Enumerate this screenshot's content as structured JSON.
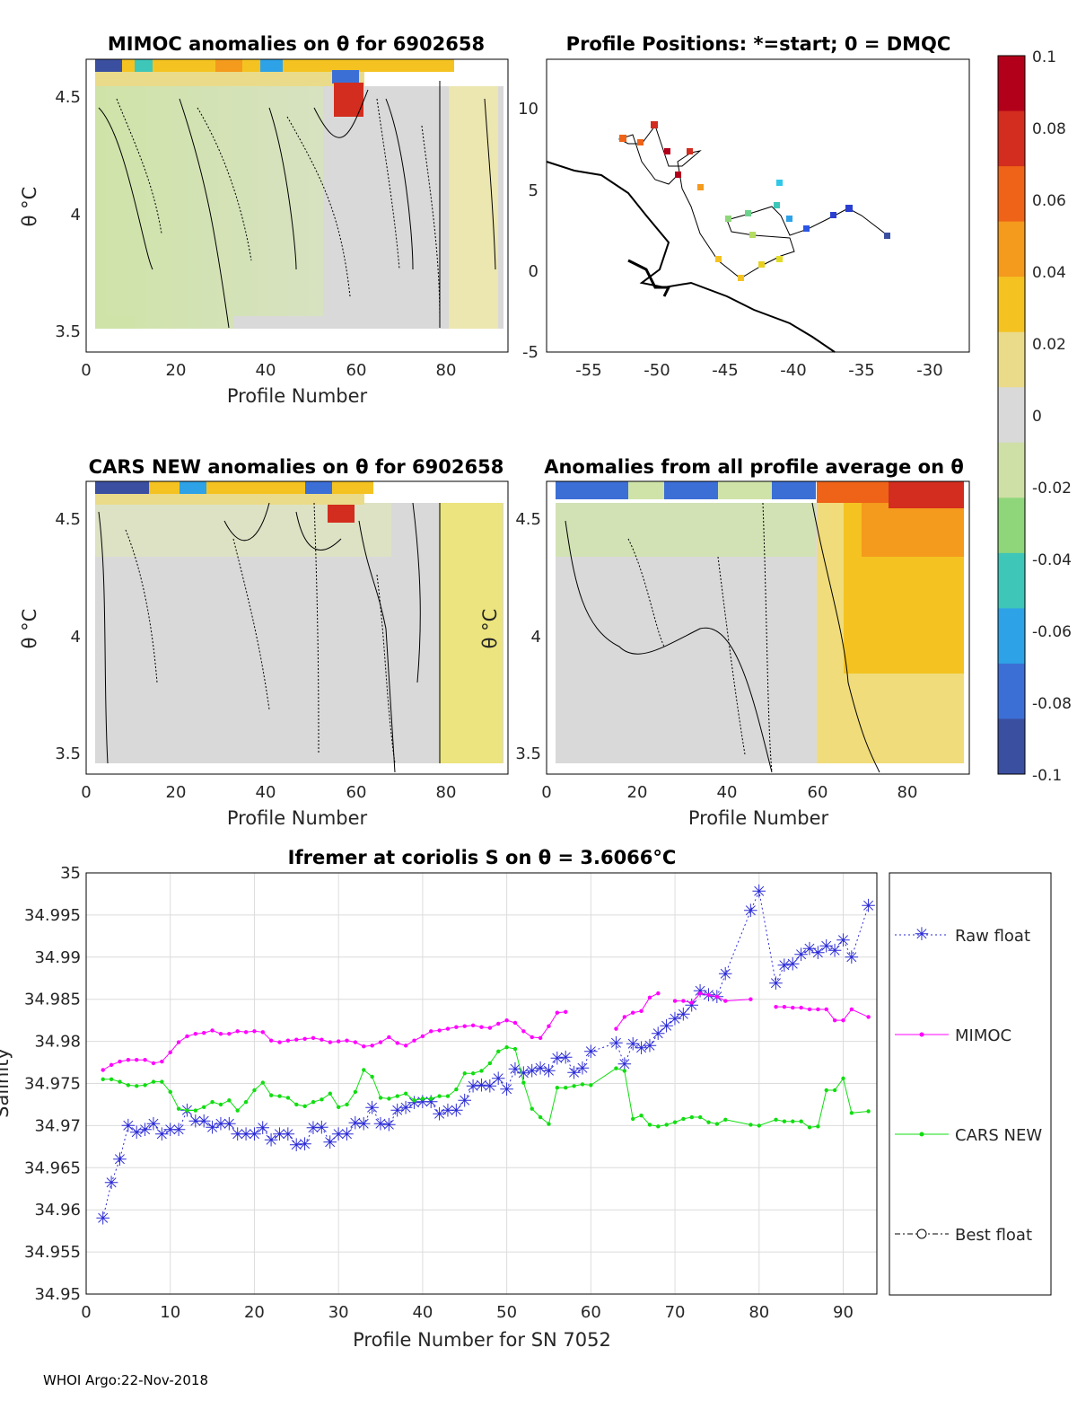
{
  "footer": "WHOI Argo:22-Nov-2018",
  "colorbar": {
    "ticks": [
      "0.1",
      "0.08",
      "0.06",
      "0.04",
      "0.02",
      "0",
      "-0.02",
      "-0.04",
      "-0.06",
      "-0.08",
      "-0.1"
    ],
    "colors": [
      "#3b4fa0",
      "#3c6fd6",
      "#2ea2e6",
      "#3ec7b9",
      "#8fd67a",
      "#cfe0a6",
      "#d9d9d9",
      "#eadb8a",
      "#f4c321",
      "#f49a1d",
      "#ee6318",
      "#d22d1e",
      "#b3001a"
    ]
  },
  "panels": {
    "mimoc": {
      "title": "MIMOC anomalies on θ  for 6902658",
      "xlabel": "Profile Number",
      "ylabel": "θ °C",
      "xticks": [
        "0",
        "20",
        "40",
        "60",
        "80"
      ],
      "yticks": [
        "4.5",
        "4",
        "3.5"
      ]
    },
    "positions": {
      "title": "Profile Positions: *=start; 0 = DMQC",
      "xticks": [
        "-55",
        "-50",
        "-45",
        "-40",
        "-35",
        "-30"
      ],
      "yticks": [
        "10",
        "5",
        "0",
        "-5"
      ]
    },
    "cars": {
      "title": "CARS NEW anomalies on θ for 6902658",
      "xlabel": "Profile Number",
      "ylabel": "θ °C",
      "xticks": [
        "0",
        "20",
        "40",
        "60",
        "80"
      ],
      "yticks": [
        "4.5",
        "4",
        "3.5"
      ]
    },
    "avg": {
      "title": "Anomalies from all profile average on θ",
      "xlabel": "Profile Number",
      "ylabel": "θ °C",
      "xticks": [
        "0",
        "20",
        "40",
        "60",
        "80"
      ],
      "yticks": [
        "4.5",
        "4",
        "3.5"
      ]
    }
  },
  "chart_data": {
    "type": "line",
    "title": "Ifremer at coriolis S on θ = 3.6066°C",
    "xlabel": "Profile Number for SN 7052",
    "ylabel": "Salinity",
    "xlim": [
      0,
      94
    ],
    "ylim": [
      34.95,
      35.0
    ],
    "xticks": [
      "0",
      "10",
      "20",
      "30",
      "40",
      "50",
      "60",
      "70",
      "80",
      "90"
    ],
    "yticks": [
      "34.95",
      "34.955",
      "34.96",
      "34.965",
      "34.97",
      "34.975",
      "34.98",
      "34.985",
      "34.99",
      "34.995",
      "35"
    ],
    "legend": [
      "Raw float",
      "MIMOC",
      "CARS NEW",
      "Best float"
    ],
    "series": [
      {
        "name": "Raw float",
        "color": "#2b2bd6",
        "marker": "star",
        "dash": "2,3",
        "x": [
          2,
          3,
          4,
          5,
          6,
          7,
          8,
          9,
          10,
          11,
          12,
          13,
          14,
          15,
          16,
          17,
          18,
          19,
          20,
          21,
          22,
          23,
          24,
          25,
          26,
          27,
          28,
          29,
          30,
          31,
          32,
          33,
          34,
          35,
          36,
          37,
          38,
          39,
          40,
          41,
          42,
          43,
          44,
          45,
          46,
          47,
          48,
          49,
          50,
          51,
          52,
          53,
          54,
          55,
          56,
          57,
          58,
          59,
          60,
          63,
          64,
          65,
          66,
          67,
          68,
          69,
          70,
          71,
          72,
          73,
          74,
          75,
          76,
          79,
          80,
          82,
          83,
          84,
          85,
          86,
          87,
          88,
          89,
          90,
          91,
          93
        ],
        "y": [
          34.959,
          34.9632,
          34.966,
          34.97,
          34.9692,
          34.9695,
          34.9702,
          34.969,
          34.9695,
          34.9695,
          34.9718,
          34.9705,
          34.9705,
          34.9698,
          34.9702,
          34.9702,
          34.969,
          34.969,
          34.969,
          34.9697,
          34.9683,
          34.969,
          34.969,
          34.9677,
          34.9678,
          34.9697,
          34.9698,
          34.968,
          34.969,
          34.969,
          34.9703,
          34.9702,
          34.9721,
          34.9702,
          34.9701,
          34.9718,
          34.9721,
          34.9727,
          34.9728,
          34.9728,
          34.9714,
          34.9718,
          34.9718,
          34.973,
          34.9747,
          34.9748,
          34.9747,
          34.9756,
          34.9743,
          34.9767,
          34.9762,
          34.9765,
          34.9768,
          34.9765,
          34.978,
          34.9781,
          34.9763,
          34.9768,
          34.9788,
          34.9798,
          34.9773,
          34.9797,
          34.9792,
          34.9795,
          34.9809,
          34.9818,
          34.9827,
          34.9832,
          34.9843,
          34.986,
          34.9855,
          34.9853,
          34.988,
          34.9955,
          34.9978,
          34.9869,
          34.989,
          34.9892,
          34.9903,
          34.991,
          34.9905,
          34.9913,
          34.9908,
          34.992,
          34.99,
          34.9961
        ]
      },
      {
        "name": "MIMOC",
        "color": "#ff00ff",
        "marker": "dot",
        "dash": "",
        "x": [
          2,
          3,
          4,
          5,
          6,
          7,
          8,
          9,
          10,
          11,
          12,
          13,
          14,
          15,
          16,
          17,
          18,
          19,
          20,
          21,
          22,
          23,
          24,
          25,
          26,
          27,
          28,
          29,
          30,
          31,
          32,
          33,
          34,
          35,
          36,
          37,
          38,
          39,
          40,
          41,
          42,
          43,
          44,
          45,
          46,
          47,
          48,
          49,
          50,
          51,
          52,
          53,
          54,
          55,
          56,
          57,
          null,
          63,
          64,
          65,
          66,
          67,
          68,
          null,
          70,
          71,
          72,
          73,
          74,
          75,
          76,
          79,
          null,
          82,
          83,
          84,
          85,
          86,
          87,
          88,
          89,
          90,
          91,
          93
        ],
        "y": [
          34.9766,
          34.9772,
          34.9776,
          34.9778,
          34.9778,
          34.9778,
          34.9774,
          34.9776,
          34.9787,
          34.9799,
          34.9806,
          34.9809,
          34.981,
          34.9813,
          34.9809,
          34.9809,
          34.9812,
          34.9811,
          34.9812,
          34.9811,
          34.9801,
          34.9799,
          34.9801,
          34.9802,
          34.9803,
          34.9804,
          34.9802,
          34.9799,
          34.98,
          34.9801,
          34.9799,
          34.9794,
          34.9795,
          34.9799,
          34.9805,
          34.9798,
          34.9795,
          34.9801,
          34.9806,
          34.9812,
          34.9813,
          34.9815,
          34.9817,
          34.9818,
          34.9819,
          34.9817,
          34.9816,
          34.9821,
          34.9825,
          34.9822,
          34.9812,
          34.9805,
          34.9804,
          34.9818,
          34.9834,
          34.9835,
          null,
          34.9815,
          34.9829,
          34.9834,
          34.9836,
          34.9852,
          34.9857,
          null,
          34.9848,
          34.9848,
          34.9846,
          34.9857,
          34.9855,
          34.9853,
          34.9848,
          34.985,
          null,
          34.9841,
          34.9841,
          34.984,
          34.984,
          34.9838,
          34.9838,
          34.9838,
          34.9825,
          34.9825,
          34.9838,
          34.9829
        ]
      },
      {
        "name": "CARS NEW",
        "color": "#11dd11",
        "marker": "dot",
        "dash": "",
        "x": [
          2,
          3,
          4,
          5,
          6,
          7,
          8,
          9,
          10,
          11,
          12,
          13,
          14,
          15,
          16,
          17,
          18,
          19,
          20,
          21,
          22,
          23,
          24,
          25,
          26,
          27,
          28,
          29,
          30,
          31,
          32,
          33,
          34,
          35,
          36,
          37,
          38,
          39,
          40,
          41,
          42,
          43,
          44,
          45,
          46,
          47,
          48,
          49,
          50,
          51,
          52,
          53,
          54,
          55,
          56,
          57,
          58,
          59,
          60,
          63,
          64,
          65,
          66,
          67,
          68,
          69,
          70,
          71,
          72,
          73,
          74,
          75,
          76,
          79,
          80,
          82,
          83,
          84,
          85,
          86,
          87,
          88,
          89,
          90,
          91,
          93
        ],
        "y": [
          34.9755,
          34.9755,
          34.9752,
          34.9748,
          34.9747,
          34.9748,
          34.9752,
          34.9752,
          34.974,
          34.972,
          34.9718,
          34.9718,
          34.9722,
          34.9728,
          34.9725,
          34.973,
          34.9718,
          34.9728,
          34.9742,
          34.9751,
          34.9736,
          34.9735,
          34.9733,
          34.9725,
          34.9723,
          34.9728,
          34.9731,
          34.9738,
          34.9722,
          34.9725,
          34.974,
          34.9766,
          34.9758,
          34.9733,
          34.9732,
          34.9735,
          34.9738,
          34.973,
          34.9732,
          34.9732,
          34.9735,
          34.9735,
          34.9743,
          34.9762,
          34.9762,
          34.9765,
          34.9774,
          34.9788,
          34.9793,
          34.9791,
          34.9751,
          34.972,
          34.971,
          34.9702,
          34.9745,
          34.9745,
          34.9747,
          34.9749,
          34.9748,
          34.9768,
          34.9765,
          34.9708,
          34.9712,
          34.9701,
          34.9699,
          34.9701,
          34.9704,
          34.9708,
          34.971,
          34.971,
          34.9704,
          34.9702,
          34.9707,
          34.9701,
          34.97,
          34.9707,
          34.9705,
          34.9705,
          34.9705,
          34.9698,
          34.9699,
          34.9742,
          34.9742,
          34.9756,
          34.9715,
          34.9717
        ]
      },
      {
        "name": "Best float",
        "color": "#000000",
        "marker": "circle",
        "dash": "6,3,2,3",
        "x": [],
        "y": []
      }
    ]
  }
}
